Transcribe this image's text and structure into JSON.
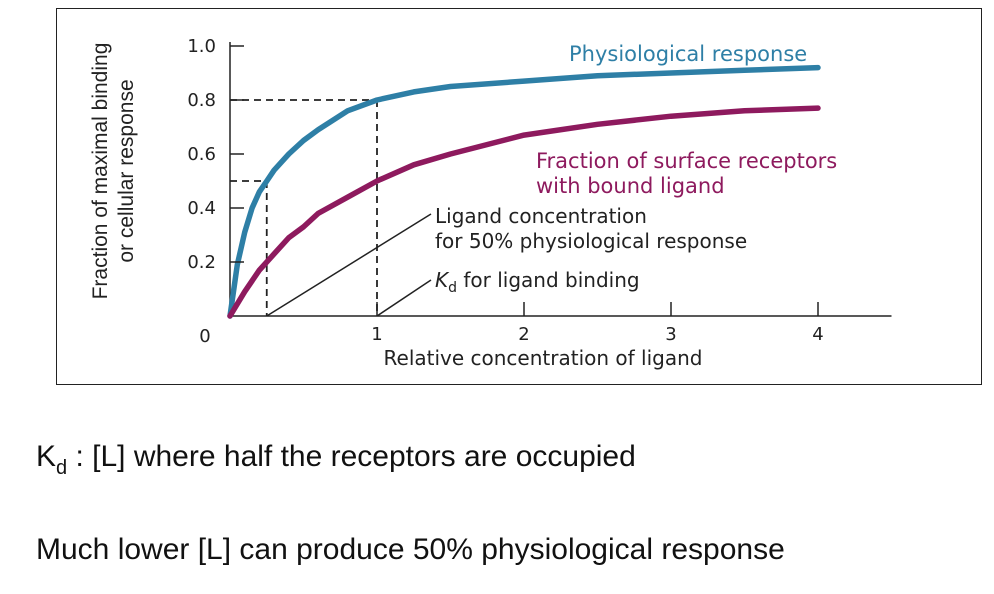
{
  "chart_data": {
    "type": "line",
    "xlabel": "Relative concentration of ligand",
    "ylabel_lines": [
      "Fraction of maximal binding",
      "or cellular response"
    ],
    "xlim": [
      0,
      4.5
    ],
    "ylim": [
      0,
      1.0
    ],
    "x_ticks": [
      1,
      2,
      3,
      4
    ],
    "y_ticks": [
      0.2,
      0.4,
      0.6,
      0.8,
      1.0
    ],
    "x_tick_labels": [
      "1",
      "2",
      "3",
      "4"
    ],
    "y_tick_labels": [
      "0.2",
      "0.4",
      "0.6",
      "0.8",
      "1.0"
    ],
    "origin_label": "0",
    "series": [
      {
        "name": "Physiological response",
        "color": "#2e7fa6",
        "x": [
          0,
          0.05,
          0.1,
          0.15,
          0.2,
          0.25,
          0.3,
          0.4,
          0.5,
          0.6,
          0.8,
          1.0,
          1.25,
          1.5,
          2.0,
          2.5,
          3.0,
          3.5,
          4.0
        ],
        "y": [
          0,
          0.19,
          0.31,
          0.4,
          0.46,
          0.5,
          0.54,
          0.6,
          0.65,
          0.69,
          0.76,
          0.8,
          0.83,
          0.85,
          0.87,
          0.89,
          0.9,
          0.91,
          0.92
        ]
      },
      {
        "name_lines": [
          "Fraction of surface receptors",
          "with bound ligand"
        ],
        "color": "#8e1a5e",
        "x": [
          0,
          0.1,
          0.2,
          0.3,
          0.4,
          0.5,
          0.6,
          0.8,
          1.0,
          1.25,
          1.5,
          2.0,
          2.5,
          3.0,
          3.5,
          4.0
        ],
        "y": [
          0,
          0.09,
          0.17,
          0.23,
          0.29,
          0.33,
          0.38,
          0.44,
          0.5,
          0.56,
          0.6,
          0.67,
          0.71,
          0.74,
          0.76,
          0.77
        ]
      }
    ],
    "annotations": {
      "ec50_lines": [
        "Ligand concentration",
        "for 50% physiological response"
      ],
      "kd_prefix": "K",
      "kd_sub": "d",
      "kd_suffix": " for ligand binding"
    },
    "guides": [
      {
        "x": 0.25,
        "y": 0.5
      },
      {
        "x": 1.0,
        "y": 0.8
      }
    ],
    "grid": false
  },
  "notes": {
    "line1_k": "K",
    "line1_sub": "d",
    "line1_rest": " :  [L] where half the receptors are occupied",
    "line2": "Much lower [L] can produce 50% physiological response"
  }
}
